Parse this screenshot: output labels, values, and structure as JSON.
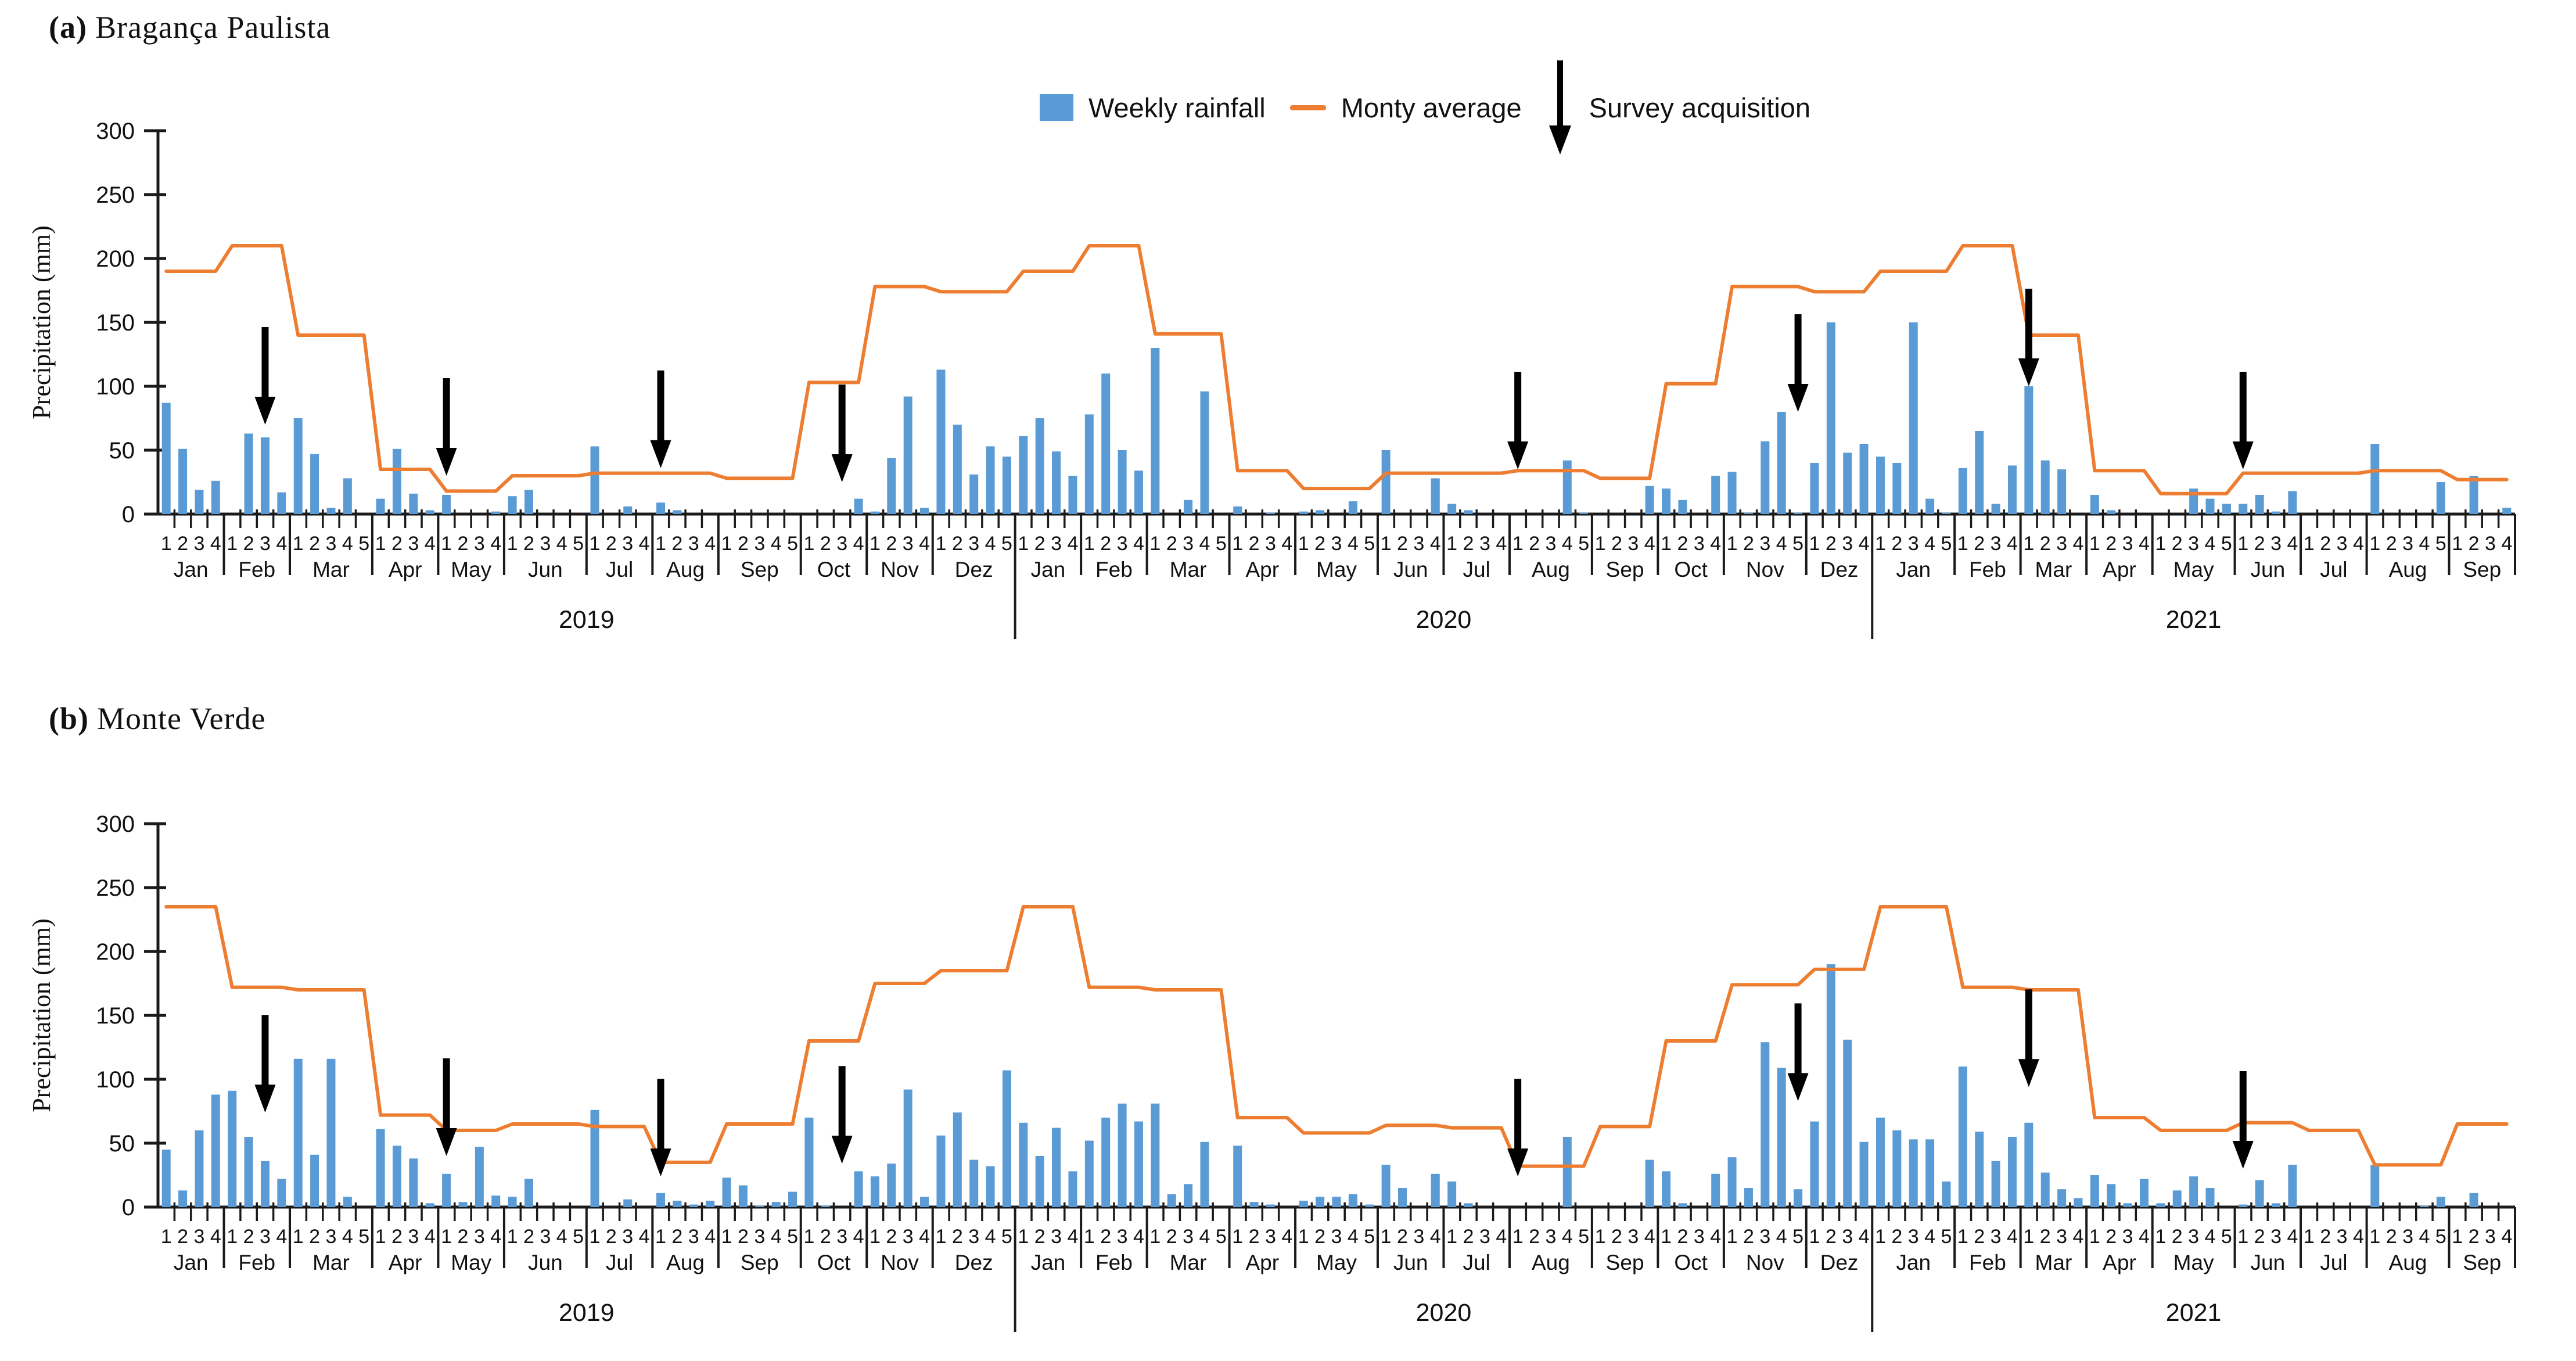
{
  "figure": {
    "panel_a": {
      "label": "(a)",
      "title": "Bragança Paulista"
    },
    "panel_b": {
      "label": "(b)",
      "title": "Monte Verde"
    },
    "legend": {
      "weekly": "Weekly rainfall",
      "monthly": "Monty average",
      "survey": "Survey acquisition"
    },
    "ylabel": "Precipitation (mm)"
  },
  "chart_data": [
    {
      "type": "bar",
      "title": "(a) Bragança Paulista",
      "location": "Bragança Paulista",
      "xlabel": "",
      "ylabel": "Precipitation (mm)",
      "ylim": [
        0,
        300
      ],
      "yticks": [
        0,
        50,
        100,
        150,
        200,
        250,
        300
      ],
      "legend": [
        "Weekly rainfall",
        "Monty average",
        "Survey acquisition"
      ],
      "legend_position": "top",
      "grid": false,
      "years": [
        {
          "year": "2019",
          "months": [
            {
              "name": "Jan",
              "avg": 190,
              "weekly": [
                87,
                51,
                19,
                26
              ]
            },
            {
              "name": "Feb",
              "avg": 210,
              "weekly": [
                0,
                63,
                60,
                17
              ]
            },
            {
              "name": "Mar",
              "avg": 140,
              "weekly": [
                75,
                47,
                5,
                28,
                0
              ]
            },
            {
              "name": "Apr",
              "avg": 35,
              "weekly": [
                12,
                51,
                16,
                3
              ]
            },
            {
              "name": "May",
              "avg": 18,
              "weekly": [
                15,
                0,
                0,
                2
              ]
            },
            {
              "name": "Jun",
              "avg": 30,
              "weekly": [
                14,
                19,
                0,
                0,
                0
              ]
            },
            {
              "name": "Jul",
              "avg": 32,
              "weekly": [
                53,
                0,
                6,
                0
              ]
            },
            {
              "name": "Aug",
              "avg": 32,
              "weekly": [
                9,
                3,
                0,
                0
              ]
            },
            {
              "name": "Sep",
              "avg": 28,
              "weekly": [
                0,
                0,
                0,
                0,
                0
              ]
            },
            {
              "name": "Oct",
              "avg": 103,
              "weekly": [
                0,
                0,
                0,
                12
              ]
            },
            {
              "name": "Nov",
              "avg": 178,
              "weekly": [
                2,
                44,
                92,
                5
              ]
            },
            {
              "name": "Dez",
              "avg": 174,
              "weekly": [
                113,
                70,
                31,
                53,
                45
              ]
            }
          ]
        },
        {
          "year": "2020",
          "months": [
            {
              "name": "Jan",
              "avg": 190,
              "weekly": [
                61,
                75,
                49,
                30
              ]
            },
            {
              "name": "Feb",
              "avg": 210,
              "weekly": [
                78,
                110,
                50,
                34
              ]
            },
            {
              "name": "Mar",
              "avg": 141,
              "weekly": [
                130,
                0,
                11,
                96,
                0
              ]
            },
            {
              "name": "Apr",
              "avg": 34,
              "weekly": [
                6,
                0,
                1,
                0
              ]
            },
            {
              "name": "May",
              "avg": 20,
              "weekly": [
                2,
                3,
                0,
                10,
                0
              ]
            },
            {
              "name": "Jun",
              "avg": 32,
              "weekly": [
                50,
                0,
                0,
                28
              ]
            },
            {
              "name": "Jul",
              "avg": 32,
              "weekly": [
                8,
                3,
                0,
                0
              ]
            },
            {
              "name": "Aug",
              "avg": 34,
              "weekly": [
                0,
                0,
                0,
                42,
                1
              ]
            },
            {
              "name": "Sep",
              "avg": 28,
              "weekly": [
                0,
                0,
                0,
                22
              ]
            },
            {
              "name": "Oct",
              "avg": 102,
              "weekly": [
                20,
                11,
                0,
                30
              ]
            },
            {
              "name": "Nov",
              "avg": 178,
              "weekly": [
                33,
                1,
                57,
                80,
                1
              ]
            },
            {
              "name": "Dez",
              "avg": 174,
              "weekly": [
                40,
                150,
                48,
                55
              ]
            }
          ]
        },
        {
          "year": "2021",
          "months": [
            {
              "name": "Jan",
              "avg": 190,
              "weekly": [
                45,
                40,
                150,
                12,
                1
              ]
            },
            {
              "name": "Feb",
              "avg": 210,
              "weekly": [
                36,
                65,
                8,
                38
              ]
            },
            {
              "name": "Mar",
              "avg": 140,
              "weekly": [
                100,
                42,
                35,
                0
              ]
            },
            {
              "name": "Apr",
              "avg": 34,
              "weekly": [
                15,
                3,
                0,
                0
              ]
            },
            {
              "name": "May",
              "avg": 16,
              "weekly": [
                0,
                0,
                20,
                12,
                8
              ]
            },
            {
              "name": "Jun",
              "avg": 32,
              "weekly": [
                8,
                15,
                2,
                18
              ]
            },
            {
              "name": "Jul",
              "avg": 32,
              "weekly": [
                0,
                0,
                0,
                0
              ]
            },
            {
              "name": "Aug",
              "avg": 34,
              "weekly": [
                55,
                0,
                0,
                0,
                25
              ]
            },
            {
              "name": "Sep",
              "avg": 27,
              "weekly": [
                0,
                30,
                0,
                5
              ]
            }
          ]
        }
      ],
      "surveys": [
        {
          "year": "2019",
          "month": "Feb",
          "week": 3,
          "tip_mm": 70
        },
        {
          "year": "2019",
          "month": "May",
          "week": 1,
          "tip_mm": 30
        },
        {
          "year": "2019",
          "month": "Aug",
          "week": 1,
          "tip_mm": 36
        },
        {
          "year": "2019",
          "month": "Oct",
          "week": 3,
          "tip_mm": 25
        },
        {
          "year": "2020",
          "month": "Aug",
          "week": 1,
          "tip_mm": 35
        },
        {
          "year": "2020",
          "month": "Nov",
          "week": 5,
          "tip_mm": 80
        },
        {
          "year": "2021",
          "month": "Mar",
          "week": 1,
          "tip_mm": 100
        },
        {
          "year": "2021",
          "month": "Jun",
          "week": 1,
          "tip_mm": 35
        }
      ],
      "colors": {
        "bar": "#5B9BD5",
        "line": "#ED7D31",
        "arrow": "#000000",
        "axis": "#1a1a1a"
      }
    },
    {
      "type": "bar",
      "title": "(b) Monte Verde",
      "location": "Monte Verde",
      "xlabel": "",
      "ylabel": "Precipitation (mm)",
      "ylim": [
        0,
        300
      ],
      "yticks": [
        0,
        50,
        100,
        150,
        200,
        250,
        300
      ],
      "legend": [
        "Weekly rainfall",
        "Monty average",
        "Survey acquisition"
      ],
      "legend_position": "top",
      "grid": false,
      "years": [
        {
          "year": "2019",
          "months": [
            {
              "name": "Jan",
              "avg": 235,
              "weekly": [
                45,
                13,
                60,
                88
              ]
            },
            {
              "name": "Feb",
              "avg": 172,
              "weekly": [
                91,
                55,
                36,
                22
              ]
            },
            {
              "name": "Mar",
              "avg": 170,
              "weekly": [
                116,
                41,
                116,
                8,
                0
              ]
            },
            {
              "name": "Apr",
              "avg": 72,
              "weekly": [
                61,
                48,
                38,
                3
              ]
            },
            {
              "name": "May",
              "avg": 60,
              "weekly": [
                26,
                4,
                47,
                9
              ]
            },
            {
              "name": "Jun",
              "avg": 65,
              "weekly": [
                8,
                22,
                0,
                0,
                0
              ]
            },
            {
              "name": "Jul",
              "avg": 63,
              "weekly": [
                76,
                0,
                6,
                0
              ]
            },
            {
              "name": "Aug",
              "avg": 35,
              "weekly": [
                11,
                5,
                2,
                5
              ]
            },
            {
              "name": "Sep",
              "avg": 65,
              "weekly": [
                23,
                17,
                1,
                4,
                12
              ]
            },
            {
              "name": "Oct",
              "avg": 130,
              "weekly": [
                70,
                1,
                0,
                28
              ]
            },
            {
              "name": "Nov",
              "avg": 175,
              "weekly": [
                24,
                34,
                92,
                8
              ]
            },
            {
              "name": "Dez",
              "avg": 185,
              "weekly": [
                56,
                74,
                37,
                32,
                107
              ]
            }
          ]
        },
        {
          "year": "2020",
          "months": [
            {
              "name": "Jan",
              "avg": 235,
              "weekly": [
                66,
                40,
                62,
                28
              ]
            },
            {
              "name": "Feb",
              "avg": 172,
              "weekly": [
                52,
                70,
                81,
                67
              ]
            },
            {
              "name": "Mar",
              "avg": 170,
              "weekly": [
                81,
                10,
                18,
                51,
                0
              ]
            },
            {
              "name": "Apr",
              "avg": 70,
              "weekly": [
                48,
                4,
                2,
                0
              ]
            },
            {
              "name": "May",
              "avg": 58,
              "weekly": [
                5,
                8,
                8,
                10,
                2
              ]
            },
            {
              "name": "Jun",
              "avg": 64,
              "weekly": [
                33,
                15,
                0,
                26
              ]
            },
            {
              "name": "Jul",
              "avg": 62,
              "weekly": [
                20,
                3,
                0,
                0
              ]
            },
            {
              "name": "Aug",
              "avg": 32,
              "weekly": [
                0,
                0,
                0,
                55,
                0
              ]
            },
            {
              "name": "Sep",
              "avg": 63,
              "weekly": [
                0,
                0,
                0,
                37
              ]
            },
            {
              "name": "Oct",
              "avg": 130,
              "weekly": [
                28,
                3,
                0,
                26
              ]
            },
            {
              "name": "Nov",
              "avg": 174,
              "weekly": [
                39,
                15,
                129,
                109,
                14
              ]
            },
            {
              "name": "Dez",
              "avg": 186,
              "weekly": [
                67,
                190,
                131,
                51
              ]
            }
          ]
        },
        {
          "year": "2021",
          "months": [
            {
              "name": "Jan",
              "avg": 235,
              "weekly": [
                70,
                60,
                53,
                53,
                20
              ]
            },
            {
              "name": "Feb",
              "avg": 172,
              "weekly": [
                110,
                59,
                36,
                55
              ]
            },
            {
              "name": "Mar",
              "avg": 170,
              "weekly": [
                66,
                27,
                14,
                7
              ]
            },
            {
              "name": "Apr",
              "avg": 70,
              "weekly": [
                25,
                18,
                3,
                22
              ]
            },
            {
              "name": "May",
              "avg": 60,
              "weekly": [
                3,
                13,
                24,
                15,
                0
              ]
            },
            {
              "name": "Jun",
              "avg": 66,
              "weekly": [
                2,
                21,
                3,
                33
              ]
            },
            {
              "name": "Jul",
              "avg": 60,
              "weekly": [
                0,
                0,
                0,
                0
              ]
            },
            {
              "name": "Aug",
              "avg": 33,
              "weekly": [
                33,
                0,
                0,
                1,
                8
              ]
            },
            {
              "name": "Sep",
              "avg": 65,
              "weekly": [
                0,
                11,
                0,
                0
              ]
            }
          ]
        }
      ],
      "surveys": [
        {
          "year": "2019",
          "month": "Feb",
          "week": 3,
          "tip_mm": 74
        },
        {
          "year": "2019",
          "month": "May",
          "week": 1,
          "tip_mm": 40
        },
        {
          "year": "2019",
          "month": "Aug",
          "week": 1,
          "tip_mm": 24
        },
        {
          "year": "2019",
          "month": "Oct",
          "week": 3,
          "tip_mm": 34
        },
        {
          "year": "2020",
          "month": "Aug",
          "week": 1,
          "tip_mm": 24
        },
        {
          "year": "2020",
          "month": "Nov",
          "week": 5,
          "tip_mm": 83
        },
        {
          "year": "2021",
          "month": "Mar",
          "week": 1,
          "tip_mm": 94
        },
        {
          "year": "2021",
          "month": "Jun",
          "week": 1,
          "tip_mm": 30
        }
      ],
      "colors": {
        "bar": "#5B9BD5",
        "line": "#ED7D31",
        "arrow": "#000000",
        "axis": "#1a1a1a"
      }
    }
  ]
}
